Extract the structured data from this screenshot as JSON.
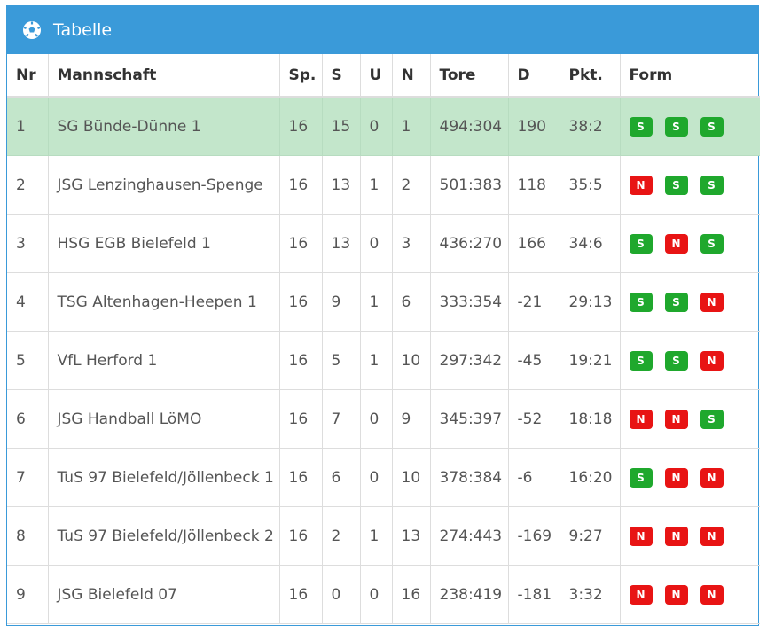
{
  "panel": {
    "title": "Tabelle",
    "icon": "soccer-ball-icon"
  },
  "headers": [
    "Nr",
    "Mannschaft",
    "Sp.",
    "S",
    "U",
    "N",
    "Tore",
    "D",
    "Pkt.",
    "Form"
  ],
  "rows": [
    {
      "nr": "1",
      "team": "SG Bünde-Dünne 1",
      "sp": "16",
      "s": "15",
      "u": "0",
      "n": "1",
      "tore": "494:304",
      "d": "190",
      "pkt": "38:2",
      "form": [
        "S",
        "S",
        "S"
      ]
    },
    {
      "nr": "2",
      "team": "JSG Lenzinghausen-Spenge",
      "sp": "16",
      "s": "13",
      "u": "1",
      "n": "2",
      "tore": "501:383",
      "d": "118",
      "pkt": "35:5",
      "form": [
        "N",
        "S",
        "S"
      ]
    },
    {
      "nr": "3",
      "team": "HSG EGB Bielefeld 1",
      "sp": "16",
      "s": "13",
      "u": "0",
      "n": "3",
      "tore": "436:270",
      "d": "166",
      "pkt": "34:6",
      "form": [
        "S",
        "N",
        "S"
      ]
    },
    {
      "nr": "4",
      "team": "TSG Altenhagen-Heepen 1",
      "sp": "16",
      "s": "9",
      "u": "1",
      "n": "6",
      "tore": "333:354",
      "d": "-21",
      "pkt": "29:13",
      "form": [
        "S",
        "S",
        "N"
      ]
    },
    {
      "nr": "5",
      "team": "VfL Herford 1",
      "sp": "16",
      "s": "5",
      "u": "1",
      "n": "10",
      "tore": "297:342",
      "d": "-45",
      "pkt": "19:21",
      "form": [
        "S",
        "S",
        "N"
      ]
    },
    {
      "nr": "6",
      "team": "JSG Handball LöMO",
      "sp": "16",
      "s": "7",
      "u": "0",
      "n": "9",
      "tore": "345:397",
      "d": "-52",
      "pkt": "18:18",
      "form": [
        "N",
        "N",
        "S"
      ]
    },
    {
      "nr": "7",
      "team": "TuS 97 Bielefeld/Jöllenbeck 1",
      "sp": "16",
      "s": "6",
      "u": "0",
      "n": "10",
      "tore": "378:384",
      "d": "-6",
      "pkt": "16:20",
      "form": [
        "S",
        "N",
        "N"
      ]
    },
    {
      "nr": "8",
      "team": "TuS 97 Bielefeld/Jöllenbeck 2",
      "sp": "16",
      "s": "2",
      "u": "1",
      "n": "13",
      "tore": "274:443",
      "d": "-169",
      "pkt": "9:27",
      "form": [
        "N",
        "N",
        "N"
      ]
    },
    {
      "nr": "9",
      "team": "JSG Bielefeld 07",
      "sp": "16",
      "s": "0",
      "u": "0",
      "n": "16",
      "tore": "238:419",
      "d": "-181",
      "pkt": "3:32",
      "form": [
        "N",
        "N",
        "N"
      ]
    }
  ],
  "colors": {
    "header": "#3a9ad9",
    "highlight_row": "#c3e6cb",
    "badge_s": "#1fa82d",
    "badge_n": "#e81414"
  }
}
